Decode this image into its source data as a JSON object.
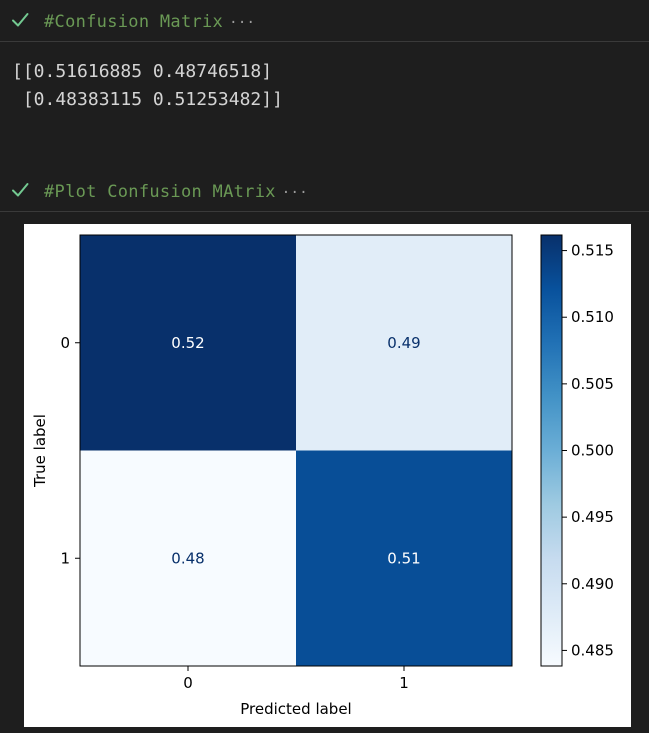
{
  "cells": [
    {
      "title": "#Confusion Matrix",
      "ellipsis": "···",
      "status": "check-icon",
      "output_lines": [
        "[[0.51616885 0.48746518]",
        " [0.48383115 0.51253482]]"
      ]
    },
    {
      "title": "#Plot Confusion MAtrix",
      "ellipsis": "···",
      "status": "check-icon"
    }
  ],
  "colors": {
    "success_check": "#73c991",
    "comment_green": "#6a9955",
    "background": "#1e1e1e",
    "output_text": "#d4d4d4"
  },
  "chart_data": {
    "type": "heatmap",
    "colormap": "Blues",
    "rows": [
      "0",
      "1"
    ],
    "cols": [
      "0",
      "1"
    ],
    "values": [
      [
        0.51616885,
        0.48746518
      ],
      [
        0.48383115,
        0.51253482
      ]
    ],
    "cell_labels": [
      [
        "0.52",
        "0.49"
      ],
      [
        "0.48",
        "0.51"
      ]
    ],
    "xlabel": "Predicted label",
    "ylabel": "True label",
    "xticks": [
      "0",
      "1"
    ],
    "yticks": [
      "0",
      "1"
    ],
    "colorbar": {
      "min": 0.48383115,
      "max": 0.51616885,
      "ticks": [
        0.485,
        0.49,
        0.495,
        0.5,
        0.505,
        0.51,
        0.515
      ],
      "tick_labels": [
        "0.485",
        "0.490",
        "0.495",
        "0.500",
        "0.505",
        "0.510",
        "0.515"
      ]
    }
  }
}
